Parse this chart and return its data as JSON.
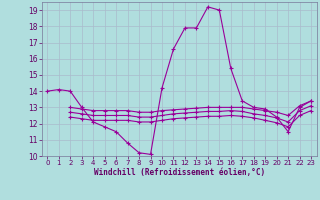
{
  "xlabel": "Windchill (Refroidissement éolien,°C)",
  "ylabel": "",
  "xlim": [
    -0.5,
    23.5
  ],
  "ylim": [
    10,
    19.5
  ],
  "yticks": [
    10,
    11,
    12,
    13,
    14,
    15,
    16,
    17,
    18,
    19
  ],
  "xticks": [
    0,
    1,
    2,
    3,
    4,
    5,
    6,
    7,
    8,
    9,
    10,
    11,
    12,
    13,
    14,
    15,
    16,
    17,
    18,
    19,
    20,
    21,
    22,
    23
  ],
  "bg_color": "#b0dede",
  "grid_color": "#aabbcc",
  "line_color": "#990099",
  "line1_x": [
    0,
    1,
    2,
    3,
    4,
    5,
    6,
    7,
    8,
    9,
    10,
    11,
    12,
    13,
    14,
    15,
    16,
    17,
    18,
    19,
    20,
    21,
    22,
    23
  ],
  "line1_y": [
    14.0,
    14.1,
    14.0,
    13.0,
    12.1,
    11.8,
    11.5,
    10.8,
    10.2,
    10.1,
    14.2,
    16.6,
    17.9,
    17.9,
    19.2,
    19.0,
    15.4,
    13.4,
    13.0,
    12.9,
    12.4,
    11.5,
    13.0,
    13.4
  ],
  "line2_x": [
    2,
    3,
    4,
    5,
    6,
    7,
    8,
    9,
    10,
    11,
    12,
    13,
    14,
    15,
    16,
    17,
    18,
    19,
    20,
    21,
    22,
    23
  ],
  "line2_y": [
    13.0,
    12.9,
    12.8,
    12.8,
    12.8,
    12.8,
    12.7,
    12.7,
    12.8,
    12.85,
    12.9,
    12.95,
    13.0,
    13.0,
    13.0,
    13.0,
    12.9,
    12.8,
    12.7,
    12.5,
    13.1,
    13.4
  ],
  "line3_x": [
    2,
    3,
    4,
    5,
    6,
    7,
    8,
    9,
    10,
    11,
    12,
    13,
    14,
    15,
    16,
    17,
    18,
    19,
    20,
    21,
    22,
    23
  ],
  "line3_y": [
    12.7,
    12.6,
    12.5,
    12.5,
    12.5,
    12.5,
    12.4,
    12.4,
    12.5,
    12.6,
    12.65,
    12.7,
    12.75,
    12.75,
    12.8,
    12.75,
    12.6,
    12.5,
    12.35,
    12.1,
    12.8,
    13.1
  ],
  "line4_x": [
    2,
    3,
    4,
    5,
    6,
    7,
    8,
    9,
    10,
    11,
    12,
    13,
    14,
    15,
    16,
    17,
    18,
    19,
    20,
    21,
    22,
    23
  ],
  "line4_y": [
    12.4,
    12.3,
    12.2,
    12.2,
    12.2,
    12.2,
    12.1,
    12.1,
    12.2,
    12.3,
    12.35,
    12.4,
    12.45,
    12.45,
    12.5,
    12.45,
    12.35,
    12.2,
    12.05,
    11.8,
    12.5,
    12.8
  ]
}
